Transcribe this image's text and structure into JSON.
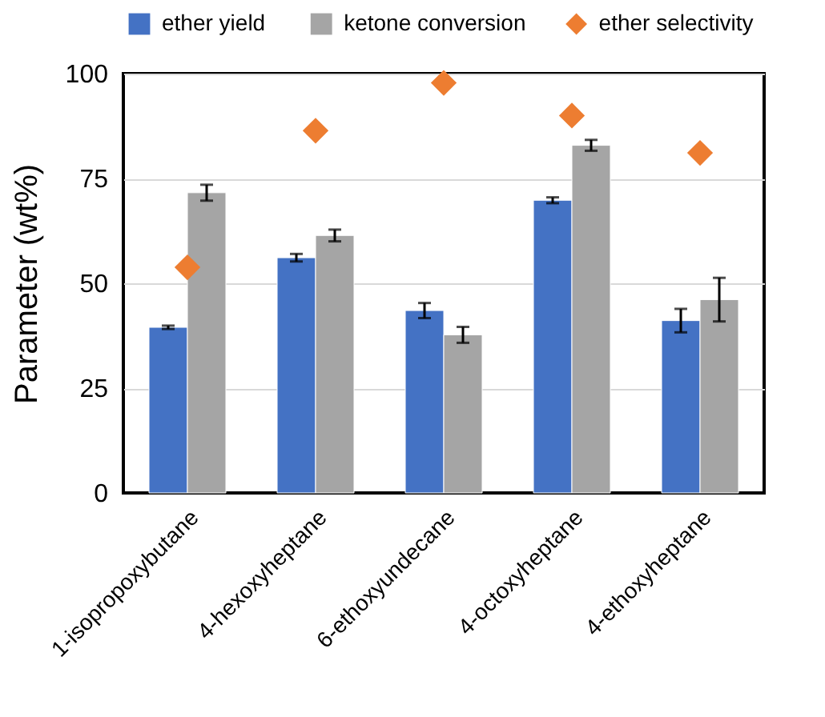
{
  "chart_data": {
    "type": "bar",
    "ylabel": "Parameter (wt%)",
    "categories": [
      "1-isopropoxybutane",
      "4-hexoxyheptane",
      "6-ethoxyundecane",
      "4-octoxyheptane",
      "4-ethoxyheptane"
    ],
    "series": [
      {
        "name": "ether yield",
        "color": "#4472c4",
        "values": [
          39.5,
          56.1,
          43.5,
          69.8,
          41.1
        ],
        "errors": [
          0.4,
          0.9,
          1.8,
          0.7,
          2.8
        ]
      },
      {
        "name": "ketone conversion",
        "color": "#a5a5a5",
        "values": [
          71.6,
          61.4,
          37.7,
          82.9,
          46.1
        ],
        "errors": [
          1.9,
          1.4,
          1.9,
          1.3,
          5.2
        ]
      },
      {
        "name": "ether selectivity",
        "type": "scatter",
        "marker": "diamond",
        "color": "#ed7d31",
        "values": [
          53.8,
          86.4,
          97.8,
          90.0,
          81.1
        ]
      }
    ],
    "ylim": [
      0,
      100
    ],
    "yticks": [
      0,
      25,
      50,
      75,
      100
    ],
    "grid": "y",
    "legend": "top"
  }
}
